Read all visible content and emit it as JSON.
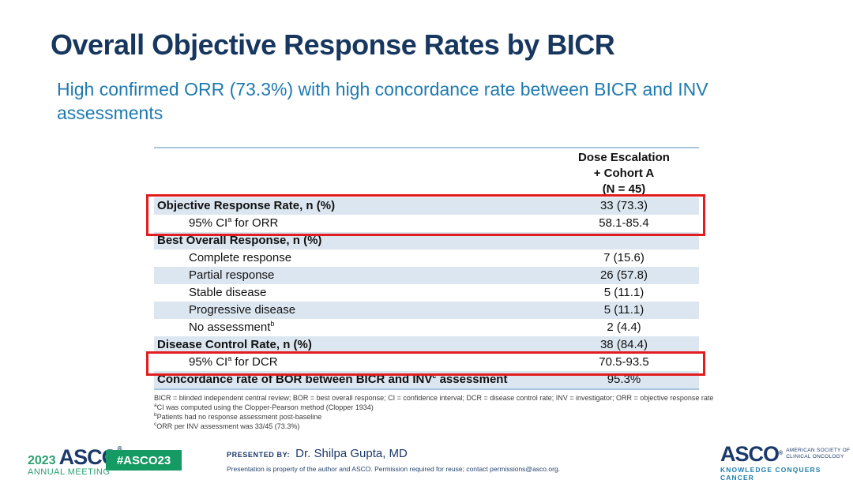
{
  "slide": {
    "title": "Overall Objective Response Rates by BICR",
    "subtitle": "High confirmed ORR (73.3%) with high concordance rate between BICR and INV assessments"
  },
  "table": {
    "header": {
      "line1": "Dose Escalation",
      "line2": "+ Cohort A",
      "line3": "(N = 45)"
    },
    "rows": [
      {
        "label_pre": "Objective Response Rate, n (%)",
        "label_sup": "",
        "label_post": "",
        "value": "33 (73.3)"
      },
      {
        "label_pre": "95% CI",
        "label_sup": "a",
        "label_post": " for ORR",
        "value": "58.1-85.4"
      },
      {
        "label_pre": "Best Overall Response, n (%)",
        "label_sup": "",
        "label_post": "",
        "value": ""
      },
      {
        "label_pre": "Complete response",
        "label_sup": "",
        "label_post": "",
        "value": "7 (15.6)"
      },
      {
        "label_pre": "Partial response",
        "label_sup": "",
        "label_post": "",
        "value": "26 (57.8)"
      },
      {
        "label_pre": "Stable disease",
        "label_sup": "",
        "label_post": "",
        "value": "5 (11.1)"
      },
      {
        "label_pre": "Progressive disease",
        "label_sup": "",
        "label_post": "",
        "value": "5 (11.1)"
      },
      {
        "label_pre": "No assessment",
        "label_sup": "b",
        "label_post": "",
        "value": "2 (4.4)"
      },
      {
        "label_pre": "Disease Control Rate, n (%)",
        "label_sup": "",
        "label_post": "",
        "value": "38 (84.4)"
      },
      {
        "label_pre": "95% CI",
        "label_sup": "a",
        "label_post": " for DCR",
        "value": "70.5-93.5"
      },
      {
        "label_pre": "Concordance rate of BOR between BICR and INV",
        "label_sup": "c",
        "label_post": " assessment",
        "value": "95.3%"
      }
    ]
  },
  "footnotes": [
    {
      "sup": "",
      "text": "BICR = blinded independent central review; BOR = best overall response; CI = confidence interval; DCR = disease control rate; INV = investigator; ORR = objective response rate"
    },
    {
      "sup": "a",
      "text": "CI was computed using the Clopper-Pearson method (Clopper 1934)"
    },
    {
      "sup": "b",
      "text": "Patients had no response assessment post-baseline"
    },
    {
      "sup": "c",
      "text": "ORR per INV assessment was 33/45 (73.3%)"
    }
  ],
  "footer": {
    "meeting_logo": {
      "year": "2023",
      "org": "ASCO",
      "reg": "®",
      "line2": "ANNUAL MEETING"
    },
    "hashtag_badge": "#ASCO23",
    "presented_by_label": "PRESENTED BY:",
    "presenter": "Dr. Shilpa Gupta, MD",
    "disclaimer": "Presentation is property of the author and ASCO. Permission required for reuse; contact permissions@asco.org.",
    "asco_logo": {
      "org": "ASCO",
      "reg": "®",
      "tagline_line1": "AMERICAN SOCIETY OF",
      "tagline_line2": "CLINICAL ONCOLOGY",
      "slogan": "KNOWLEDGE CONQUERS CANCER"
    }
  },
  "colors": {
    "title_navy": "#17375e",
    "subtitle_blue": "#1f7ab0",
    "row_shade": "#dce6f1",
    "table_rule": "#a9c6de",
    "highlight_red": "#e11d1f",
    "asco_green": "#169a63",
    "logo_green": "#2ba173",
    "brand_navy": "#1b3a6b",
    "slogan_teal": "#1d7fab"
  }
}
